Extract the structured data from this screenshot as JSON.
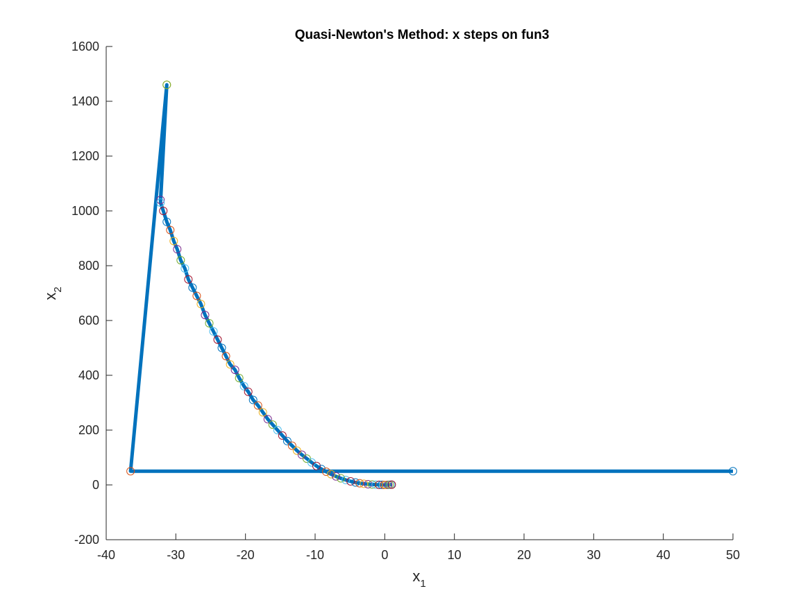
{
  "chart_data": {
    "type": "line",
    "title": "Quasi-Newton's Method: x steps on fun3",
    "xlabel": {
      "base": "x",
      "sub": "1"
    },
    "ylabel": {
      "base": "x",
      "sub": "2"
    },
    "xlim": [
      -40,
      50
    ],
    "ylim": [
      -200,
      1600
    ],
    "xticks": [
      -40,
      -30,
      -20,
      -10,
      0,
      10,
      20,
      30,
      40,
      50
    ],
    "yticks": [
      -200,
      0,
      200,
      400,
      600,
      800,
      1000,
      1200,
      1400,
      1600
    ],
    "grid": false,
    "legend": "none",
    "line_color": "#0072BD",
    "marker_colors": [
      "#0072BD",
      "#D95319",
      "#EDB120",
      "#7E2F8E",
      "#77AC30",
      "#4DBEEE",
      "#A2142F"
    ],
    "series": [
      {
        "x": [
          50,
          -36.5,
          -31.3,
          -32.2,
          -31.3,
          -32.2,
          -31.8,
          -31.3,
          -30.8,
          -30.3,
          -29.8,
          -29.3,
          -28.7,
          -28.2,
          -27.6,
          -27.0,
          -26.4,
          -25.8,
          -25.2,
          -24.6,
          -24.0,
          -23.4,
          -22.8,
          -22.2,
          -21.5,
          -20.9,
          -20.2,
          -19.6,
          -18.9,
          -18.2,
          -17.5,
          -16.8,
          -16.1,
          -15.4,
          -14.7,
          -14.0,
          -13.3,
          -12.6,
          -11.9,
          -11.2,
          -10.5,
          -9.8,
          -9.1,
          -8.4,
          -7.7,
          -7.0,
          -6.3,
          -5.6,
          -4.9,
          -4.2,
          -3.6,
          -3.0,
          -2.4,
          -1.8,
          -1.3,
          -0.8,
          -0.4,
          -0.1,
          0.2,
          0.5,
          0.7,
          0.9,
          1.0
        ],
        "y": [
          50,
          50,
          1460,
          1040,
          1460,
          1030,
          1000,
          960,
          930,
          890,
          860,
          820,
          790,
          750,
          720,
          690,
          660,
          620,
          590,
          560,
          530,
          500,
          470,
          440,
          420,
          390,
          360,
          340,
          310,
          290,
          265,
          240,
          220,
          200,
          180,
          160,
          143,
          125,
          110,
          96,
          82,
          69,
          58,
          48,
          39,
          31,
          24,
          18,
          13,
          9,
          6,
          4,
          2.5,
          1.5,
          0.8,
          0.4,
          0.2,
          0.1,
          0.1,
          0.3,
          0.5,
          0.8,
          1.0
        ]
      }
    ]
  }
}
